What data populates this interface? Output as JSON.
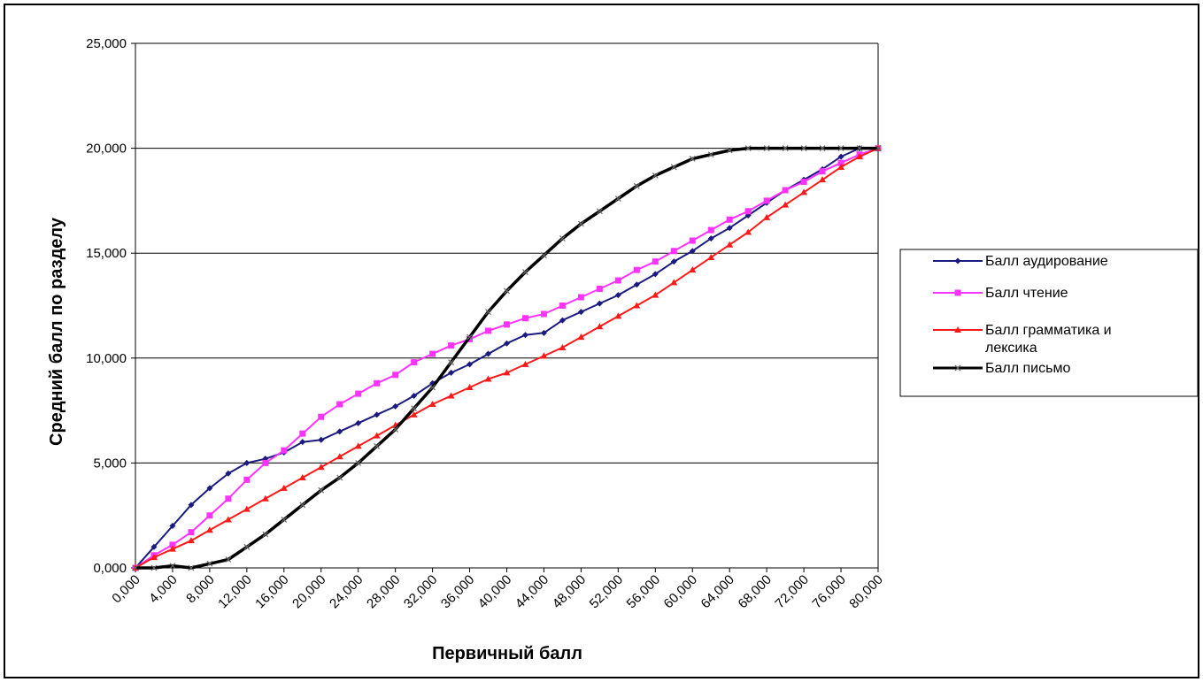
{
  "chart_data": {
    "type": "line",
    "xlabel": "Первичный балл",
    "ylabel": "Средний балл по разделу",
    "xlim": [
      0,
      80
    ],
    "ylim": [
      0,
      25
    ],
    "x_tick_labels": [
      "0,000",
      "4,000",
      "8,000",
      "12,000",
      "16,000",
      "20,000",
      "24,000",
      "28,000",
      "32,000",
      "36,000",
      "40,000",
      "44,000",
      "48,000",
      "52,000",
      "56,000",
      "60,000",
      "64,000",
      "68,000",
      "72,000",
      "76,000",
      "80,000"
    ],
    "y_tick_labels": [
      "0,000",
      "5,000",
      "10,000",
      "15,000",
      "20,000",
      "25,000"
    ],
    "grid": "horizontal",
    "legend_position": "right",
    "series": [
      {
        "name": "Балл аудирование",
        "color": "#1a1a80",
        "marker": "diamond",
        "x": [
          0,
          2,
          4,
          6,
          8,
          10,
          12,
          14,
          16,
          18,
          20,
          22,
          24,
          26,
          28,
          30,
          32,
          34,
          36,
          38,
          40,
          42,
          44,
          46,
          48,
          50,
          52,
          54,
          56,
          58,
          60,
          62,
          64,
          66,
          68,
          70,
          72,
          74,
          76,
          78,
          80
        ],
        "y": [
          0,
          1.0,
          2.0,
          3.0,
          3.8,
          4.5,
          5.0,
          5.2,
          5.5,
          6.0,
          6.1,
          6.5,
          6.9,
          7.3,
          7.7,
          8.2,
          8.8,
          9.3,
          9.7,
          10.2,
          10.7,
          11.1,
          11.2,
          11.8,
          12.2,
          12.6,
          13.0,
          13.5,
          14.0,
          14.6,
          15.1,
          15.7,
          16.2,
          16.8,
          17.4,
          18.0,
          18.5,
          19.0,
          19.6,
          20.0,
          20.0
        ]
      },
      {
        "name": "Балл чтение",
        "color": "#ff33ff",
        "marker": "square",
        "x": [
          0,
          2,
          4,
          6,
          8,
          10,
          12,
          14,
          16,
          18,
          20,
          22,
          24,
          26,
          28,
          30,
          32,
          34,
          36,
          38,
          40,
          42,
          44,
          46,
          48,
          50,
          52,
          54,
          56,
          58,
          60,
          62,
          64,
          66,
          68,
          70,
          72,
          74,
          76,
          78,
          80
        ],
        "y": [
          0,
          0.6,
          1.1,
          1.7,
          2.5,
          3.3,
          4.2,
          5.0,
          5.6,
          6.4,
          7.2,
          7.8,
          8.3,
          8.8,
          9.2,
          9.8,
          10.2,
          10.6,
          10.9,
          11.3,
          11.6,
          11.9,
          12.1,
          12.5,
          12.9,
          13.3,
          13.7,
          14.2,
          14.6,
          15.1,
          15.6,
          16.1,
          16.6,
          17.0,
          17.5,
          18.0,
          18.4,
          18.9,
          19.3,
          19.7,
          20.0
        ]
      },
      {
        "name": "Балл грамматика и лексика",
        "color": "#ff1a1a",
        "marker": "triangle",
        "x": [
          0,
          2,
          4,
          6,
          8,
          10,
          12,
          14,
          16,
          18,
          20,
          22,
          24,
          26,
          28,
          30,
          32,
          34,
          36,
          38,
          40,
          42,
          44,
          46,
          48,
          50,
          52,
          54,
          56,
          58,
          60,
          62,
          64,
          66,
          68,
          70,
          72,
          74,
          76,
          78,
          80
        ],
        "y": [
          0,
          0.5,
          0.9,
          1.3,
          1.8,
          2.3,
          2.8,
          3.3,
          3.8,
          4.3,
          4.8,
          5.3,
          5.8,
          6.3,
          6.8,
          7.3,
          7.8,
          8.2,
          8.6,
          9.0,
          9.3,
          9.7,
          10.1,
          10.5,
          11.0,
          11.5,
          12.0,
          12.5,
          13.0,
          13.6,
          14.2,
          14.8,
          15.4,
          16.0,
          16.7,
          17.3,
          17.9,
          18.5,
          19.1,
          19.6,
          20.0
        ]
      },
      {
        "name": "Балл письмо",
        "color": "#000000",
        "marker": "x",
        "x": [
          0,
          2,
          4,
          6,
          8,
          10,
          12,
          14,
          16,
          18,
          20,
          22,
          24,
          26,
          28,
          30,
          32,
          34,
          36,
          38,
          40,
          42,
          44,
          46,
          48,
          50,
          52,
          54,
          56,
          58,
          60,
          62,
          64,
          66,
          68,
          70,
          72,
          74,
          76,
          78,
          80
        ],
        "y": [
          0,
          0,
          0.1,
          0,
          0.2,
          0.4,
          1.0,
          1.6,
          2.3,
          3.0,
          3.7,
          4.3,
          5.0,
          5.8,
          6.6,
          7.6,
          8.6,
          9.8,
          11.0,
          12.2,
          13.2,
          14.1,
          14.9,
          15.7,
          16.4,
          17.0,
          17.6,
          18.2,
          18.7,
          19.1,
          19.5,
          19.7,
          19.9,
          20.0,
          20.0,
          20.0,
          20.0,
          20.0,
          20.0,
          20.0,
          20.0
        ]
      }
    ]
  }
}
